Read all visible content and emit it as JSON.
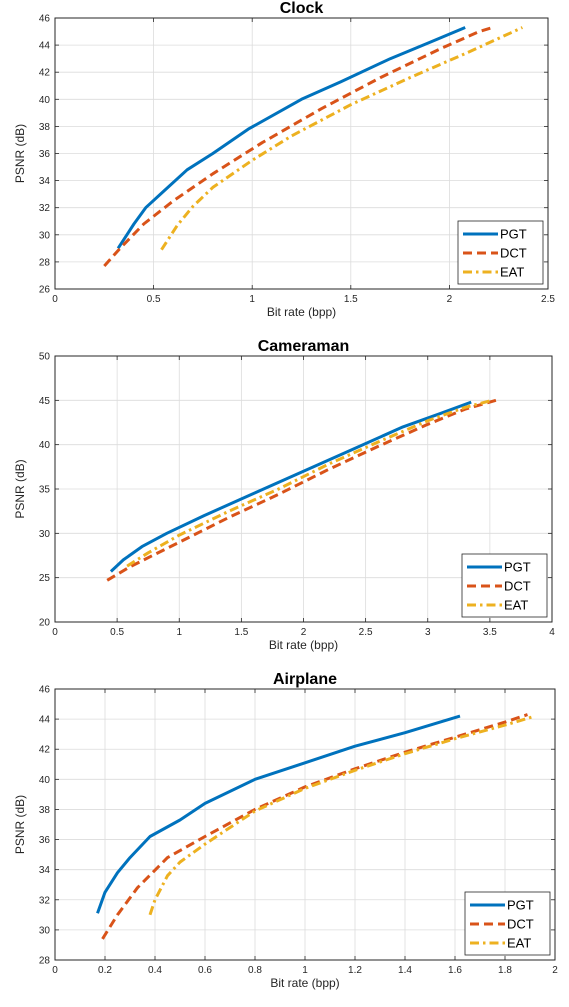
{
  "colors": {
    "PGT": "#0072BD",
    "DCT": "#D95319",
    "EAT": "#EDB120"
  },
  "chart_data": [
    {
      "type": "line",
      "title": "Clock",
      "xlabel": "Bit rate (bpp)",
      "ylabel": "PSNR (dB)",
      "xlim": [
        0,
        2.5
      ],
      "ylim": [
        26,
        46
      ],
      "xticks": [
        0,
        0.5,
        1,
        1.5,
        2,
        2.5
      ],
      "xtick_labels": [
        "0",
        "0.5",
        "1",
        "1.5",
        "2",
        "2.5"
      ],
      "yticks": [
        26,
        28,
        30,
        32,
        34,
        36,
        38,
        40,
        42,
        44,
        46
      ],
      "ytick_labels": [
        "26",
        "28",
        "30",
        "32",
        "34",
        "36",
        "38",
        "40",
        "42",
        "44",
        "46"
      ],
      "grid": true,
      "legend": "bottom-right",
      "series": [
        {
          "name": "PGT",
          "style": "solid",
          "x": [
            0.32,
            0.4,
            0.46,
            0.55,
            0.67,
            0.8,
            0.98,
            1.25,
            1.45,
            1.7,
            1.9,
            2.08
          ],
          "y": [
            29.0,
            30.8,
            32.0,
            33.2,
            34.8,
            36.0,
            37.8,
            40.0,
            41.3,
            43.0,
            44.2,
            45.3
          ]
        },
        {
          "name": "DCT",
          "style": "dashed",
          "x": [
            0.25,
            0.33,
            0.45,
            0.6,
            0.8,
            1.05,
            1.35,
            1.65,
            1.95,
            2.15,
            2.22
          ],
          "y": [
            27.7,
            29.0,
            30.8,
            32.5,
            34.5,
            36.8,
            39.3,
            41.6,
            43.7,
            45.0,
            45.3
          ]
        },
        {
          "name": "EAT",
          "style": "dashdot",
          "x": [
            0.54,
            0.58,
            0.62,
            0.7,
            0.8,
            1.0,
            1.2,
            1.5,
            1.8,
            2.1,
            2.37
          ],
          "y": [
            28.9,
            29.8,
            30.7,
            32.1,
            33.5,
            35.5,
            37.3,
            39.6,
            41.6,
            43.5,
            45.3
          ]
        }
      ]
    },
    {
      "type": "line",
      "title": "Cameraman",
      "xlabel": "Bit rate (bpp)",
      "ylabel": "PSNR (dB)",
      "xlim": [
        0,
        4
      ],
      "ylim": [
        20,
        50
      ],
      "xticks": [
        0,
        0.5,
        1,
        1.5,
        2,
        2.5,
        3,
        3.5,
        4
      ],
      "xtick_labels": [
        "0",
        "0.5",
        "1",
        "1.5",
        "2",
        "2.5",
        "3",
        "3.5",
        "4"
      ],
      "yticks": [
        20,
        25,
        30,
        35,
        40,
        45,
        50
      ],
      "ytick_labels": [
        "20",
        "25",
        "30",
        "35",
        "40",
        "45",
        "50"
      ],
      "grid": true,
      "legend": "bottom-right",
      "series": [
        {
          "name": "PGT",
          "style": "solid",
          "x": [
            0.45,
            0.55,
            0.7,
            0.9,
            1.2,
            1.6,
            2.0,
            2.4,
            2.8,
            3.1,
            3.35
          ],
          "y": [
            25.7,
            27.0,
            28.5,
            30.0,
            32.0,
            34.5,
            37.0,
            39.5,
            42.0,
            43.5,
            44.8
          ]
        },
        {
          "name": "DCT",
          "style": "dashed",
          "x": [
            0.42,
            0.6,
            0.8,
            1.0,
            1.4,
            1.8,
            2.2,
            2.6,
            3.0,
            3.3,
            3.55
          ],
          "y": [
            24.7,
            26.2,
            27.6,
            29.0,
            31.8,
            34.4,
            37.2,
            39.8,
            42.3,
            44.0,
            45.0
          ]
        },
        {
          "name": "EAT",
          "style": "dashdot",
          "x": [
            0.58,
            0.75,
            1.0,
            1.4,
            1.8,
            2.2,
            2.6,
            3.0,
            3.3,
            3.52
          ],
          "y": [
            26.3,
            27.8,
            29.8,
            32.5,
            35.0,
            37.8,
            40.3,
            42.7,
            44.2,
            45.0
          ]
        }
      ]
    },
    {
      "type": "line",
      "title": "Airplane",
      "xlabel": "Bit rate (bpp)",
      "ylabel": "PSNR (dB)",
      "xlim": [
        0,
        2
      ],
      "ylim": [
        28,
        46
      ],
      "xticks": [
        0,
        0.2,
        0.4,
        0.6,
        0.8,
        1,
        1.2,
        1.4,
        1.6,
        1.8,
        2
      ],
      "xtick_labels": [
        "0",
        "0.2",
        "0.4",
        "0.6",
        "0.8",
        "1",
        "1.2",
        "1.4",
        "1.6",
        "1.8",
        "2"
      ],
      "yticks": [
        28,
        30,
        32,
        34,
        36,
        38,
        40,
        42,
        44,
        46
      ],
      "ytick_labels": [
        "28",
        "30",
        "32",
        "34",
        "36",
        "38",
        "40",
        "42",
        "44",
        "46"
      ],
      "grid": true,
      "legend": "bottom-right",
      "series": [
        {
          "name": "PGT",
          "style": "solid",
          "x": [
            0.17,
            0.2,
            0.25,
            0.3,
            0.38,
            0.5,
            0.6,
            0.8,
            1.0,
            1.2,
            1.4,
            1.62
          ],
          "y": [
            31.1,
            32.5,
            33.8,
            34.8,
            36.2,
            37.3,
            38.4,
            40.0,
            41.1,
            42.2,
            43.1,
            44.2
          ]
        },
        {
          "name": "DCT",
          "style": "dashed",
          "x": [
            0.19,
            0.25,
            0.33,
            0.45,
            0.6,
            0.8,
            1.0,
            1.2,
            1.4,
            1.6,
            1.8,
            1.89
          ],
          "y": [
            29.4,
            31.0,
            32.8,
            34.8,
            36.2,
            38.0,
            39.5,
            40.7,
            41.8,
            42.8,
            43.8,
            44.3
          ]
        },
        {
          "name": "EAT",
          "style": "dashdot",
          "x": [
            0.38,
            0.4,
            0.45,
            0.5,
            0.6,
            0.8,
            1.0,
            1.2,
            1.4,
            1.6,
            1.8,
            1.92
          ],
          "y": [
            31.0,
            32.0,
            33.6,
            34.5,
            35.7,
            37.9,
            39.4,
            40.6,
            41.7,
            42.7,
            43.6,
            44.2
          ]
        }
      ]
    }
  ]
}
